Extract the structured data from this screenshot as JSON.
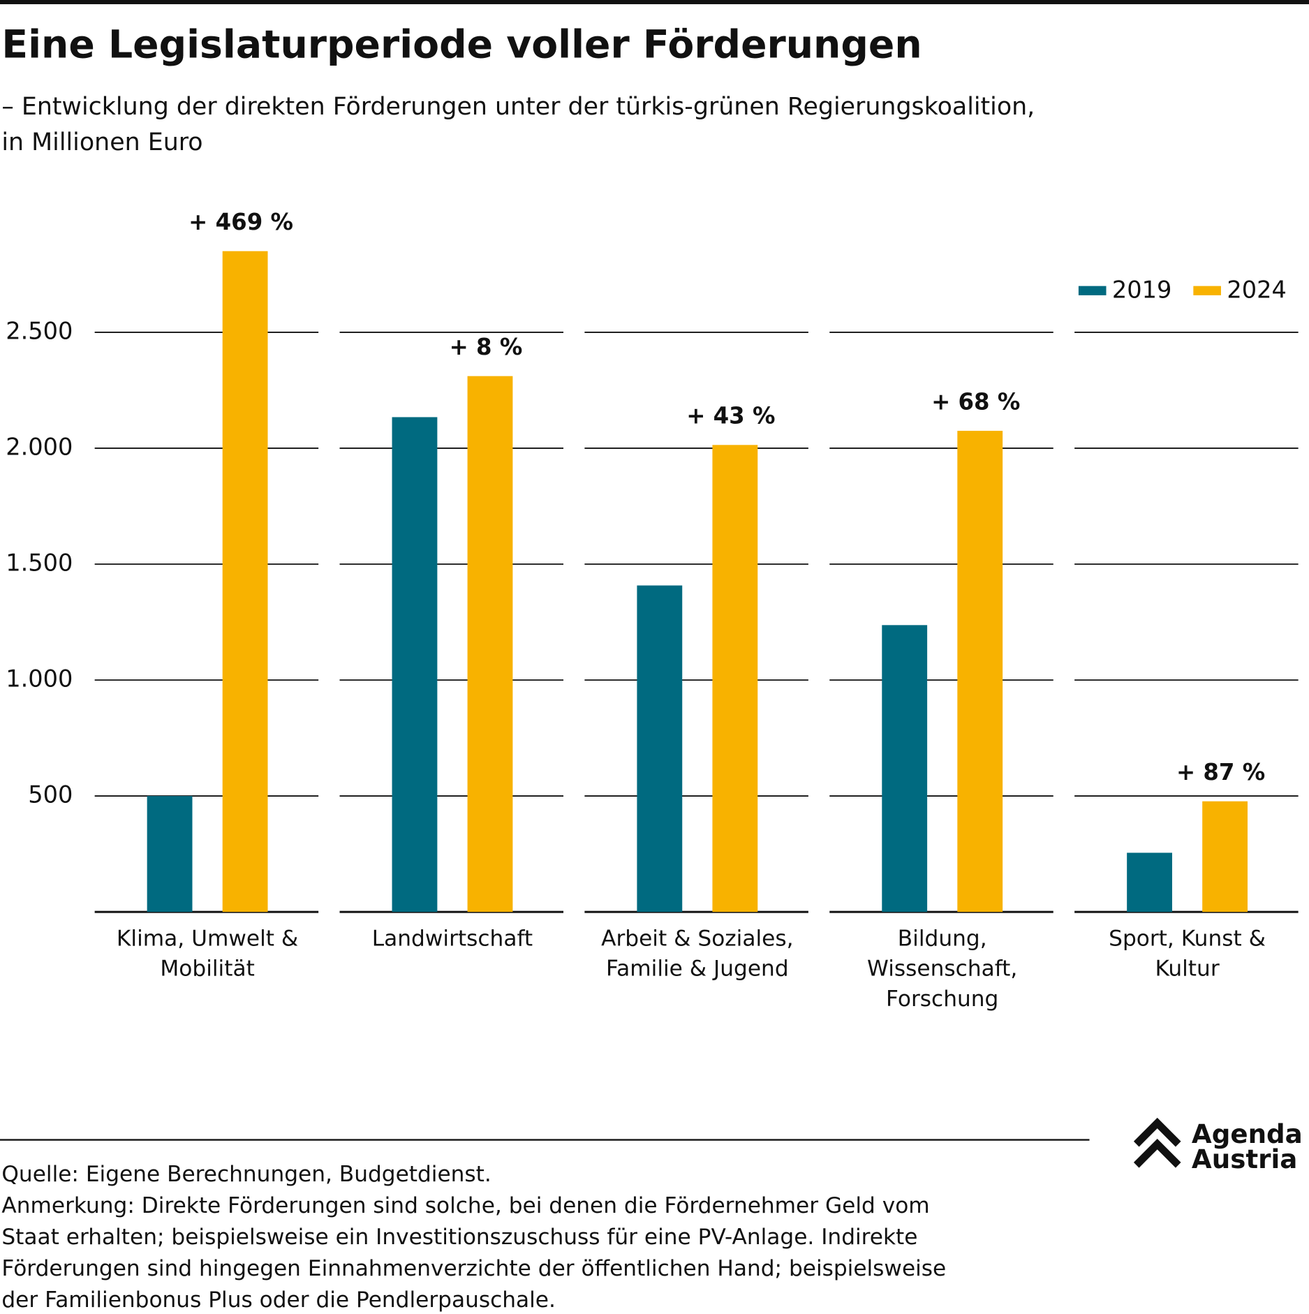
{
  "chart_data": {
    "type": "bar",
    "title": "Eine Legislaturperiode voller Förderungen",
    "subtitle": [
      "– Entwicklung der direkten Förderungen unter der türkis-grünen Regierungskoalition,",
      "in Millionen Euro"
    ],
    "categories": [
      "Klima, Umwelt &\nMobilität",
      "Landwirtschaft",
      "Arbeit & Soziales,\nFamilie & Jugend",
      "Bildung,\nWissenschaft,\nForschung",
      "Sport, Kunst &\nKultur"
    ],
    "series": [
      {
        "name": "2019",
        "color": "#006a80",
        "values": [
          500,
          2134,
          1408,
          1237,
          255
        ]
      },
      {
        "name": "2024",
        "color": "#f8b200",
        "values": [
          2850,
          2311,
          2014,
          2075,
          477
        ]
      }
    ],
    "annotations": [
      "+ 469 %",
      "+ 8 %",
      "+ 43 %",
      "+ 68 %",
      "+ 87 %"
    ],
    "ylim": [
      0,
      3000
    ],
    "yticks": [
      500,
      {
        "value": 1000,
        "label": "1.000"
      },
      {
        "value": 1500,
        "label": "1.500"
      },
      {
        "value": 2000,
        "label": "2.000"
      },
      {
        "value": 2500,
        "label": "2.500"
      }
    ],
    "grid": true,
    "legend": "top-right",
    "notes": [
      "Quelle: Eigene Berechnungen, Budgetdienst.",
      "Anmerkung: Direkte Förderungen sind solche, bei denen die Fördernehmer Geld vom",
      "Staat erhalten; beispielsweise ein Investitionszuschuss für eine PV-Anlage. Indirekte",
      "Förderungen sind hingegen Einnahmenverzichte der öffentlichen Hand; beispielsweise",
      "der Familienbonus Plus oder die Pendlerpauschale."
    ],
    "logo": [
      "Agenda",
      "Austria"
    ]
  }
}
